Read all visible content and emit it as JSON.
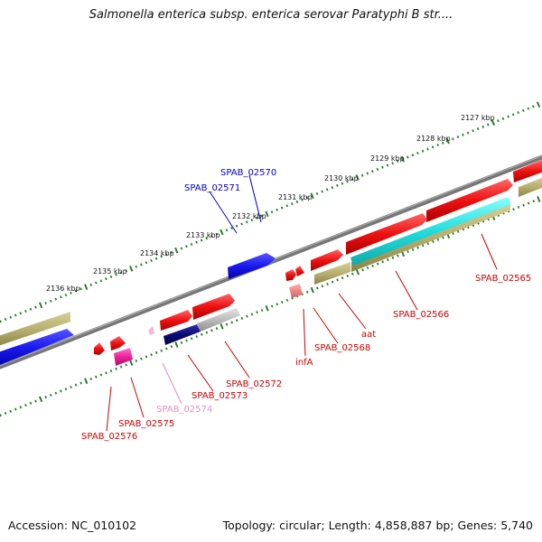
{
  "title": "Salmonella enterica subsp. enterica serovar Paratyphi B str....",
  "footer": {
    "accession": "Accession: NC_010102",
    "summary": "Topology: circular; Length: 4,858,887 bp; Genes: 5,740"
  },
  "scale_labels": [
    "2127 kbp",
    "2128 kbp",
    "2129 kbp",
    "2130 kbp",
    "2131 kbp",
    "2132 kbp",
    "2133 kbp",
    "2134 kbp",
    "2135 kbp",
    "2136 kbp"
  ],
  "gene_labels": [
    {
      "id": "SPAB_02570",
      "text": "SPAB_02570",
      "color": "#0000cc"
    },
    {
      "id": "SPAB_02571",
      "text": "SPAB_02571",
      "color": "#0000cc"
    },
    {
      "id": "SPAB_02565",
      "text": "SPAB_02565",
      "color": "#cc0000"
    },
    {
      "id": "SPAB_02566",
      "text": "SPAB_02566",
      "color": "#cc0000"
    },
    {
      "id": "aat",
      "text": "aat",
      "color": "#cc0000"
    },
    {
      "id": "SPAB_02568",
      "text": "SPAB_02568",
      "color": "#cc0000"
    },
    {
      "id": "infA",
      "text": "infA",
      "color": "#cc0000"
    },
    {
      "id": "SPAB_02572",
      "text": "SPAB_02572",
      "color": "#cc0000"
    },
    {
      "id": "SPAB_02573",
      "text": "SPAB_02573",
      "color": "#cc0000"
    },
    {
      "id": "SPAB_02574",
      "text": "SPAB_02574",
      "color": "#e58fbf"
    },
    {
      "id": "SPAB_02575",
      "text": "SPAB_02575",
      "color": "#cc0000"
    },
    {
      "id": "SPAB_02576",
      "text": "SPAB_02576",
      "color": "#cc0000"
    }
  ],
  "colors": {
    "backbone": "#808080",
    "ruler": "#2e7d32",
    "cds": "#ee1111",
    "rna": "#ff3399",
    "forward_blue": "#1a1aee",
    "dark_blue": "#0a0a77",
    "olive": "#b8b070",
    "cyan": "#22dddd",
    "gray": "#bbbbbb",
    "pink": "#ee88aa"
  }
}
